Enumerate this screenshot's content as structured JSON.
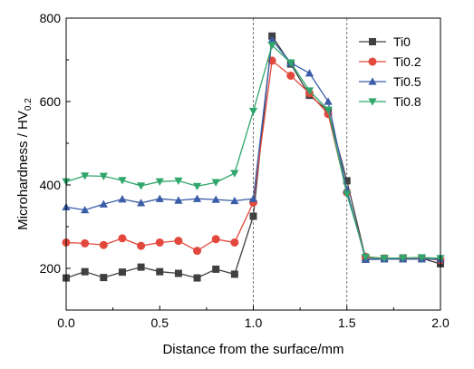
{
  "chart_data": {
    "type": "line",
    "title": "",
    "xlabel": "Distance from the surface/mm",
    "ylabel_main": "Microhardness / HV",
    "ylabel_sub": "0.2",
    "xlim": [
      0.0,
      2.0
    ],
    "ylim": [
      100,
      800
    ],
    "xticks": [
      "0.0",
      "0.5",
      "1.0",
      "1.5",
      "2.0"
    ],
    "yticks": [
      "200",
      "400",
      "600",
      "800"
    ],
    "grid": false,
    "legend_position": "top-right",
    "vlines": [
      1.0,
      1.5
    ],
    "x": [
      0.0,
      0.1,
      0.2,
      0.3,
      0.4,
      0.5,
      0.6,
      0.7,
      0.8,
      0.9,
      1.0,
      1.1,
      1.2,
      1.3,
      1.4,
      1.5,
      1.6,
      1.7,
      1.8,
      1.9,
      2.0
    ],
    "series": [
      {
        "name": "Ti0",
        "color": "#404040",
        "marker": "square",
        "values": [
          177,
          192,
          178,
          191,
          203,
          192,
          188,
          177,
          198,
          186,
          325,
          757,
          690,
          615,
          578,
          410,
          225,
          224,
          225,
          224,
          211
        ]
      },
      {
        "name": "Ti0.2",
        "color": "#e2483c",
        "marker": "circle",
        "values": [
          262,
          260,
          256,
          272,
          254,
          262,
          266,
          242,
          270,
          262,
          358,
          698,
          662,
          620,
          570,
          382,
          228,
          224,
          224,
          224,
          220
        ]
      },
      {
        "name": "Ti0.5",
        "color": "#3a5da8",
        "marker": "triangle-up",
        "values": [
          347,
          340,
          354,
          366,
          357,
          367,
          363,
          367,
          365,
          362,
          367,
          748,
          693,
          668,
          600,
          388,
          221,
          222,
          222,
          222,
          222
        ]
      },
      {
        "name": "Ti0.8",
        "color": "#2fa66c",
        "marker": "triangle-down",
        "values": [
          408,
          422,
          421,
          411,
          398,
          408,
          410,
          397,
          406,
          428,
          577,
          735,
          693,
          626,
          580,
          378,
          227,
          224,
          225,
          226,
          224
        ]
      }
    ]
  }
}
